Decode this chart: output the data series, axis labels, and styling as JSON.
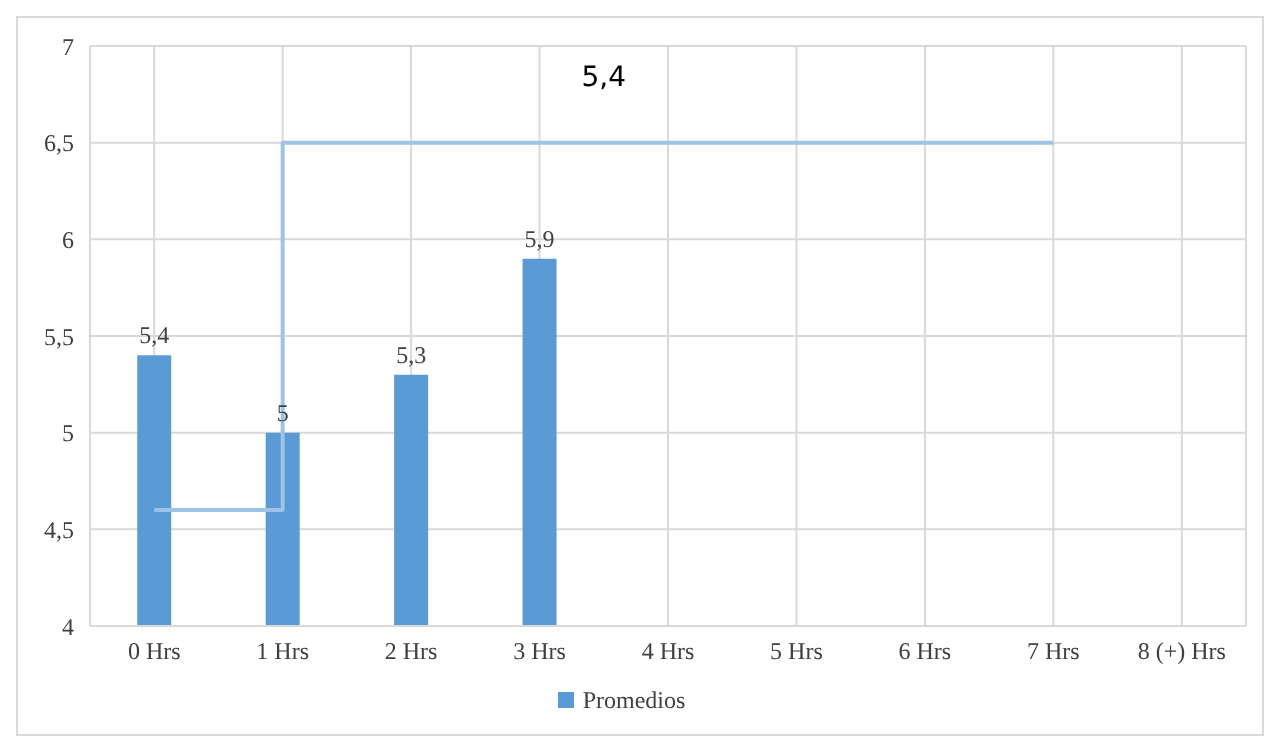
{
  "chart_data": {
    "type": "bar",
    "categories": [
      "0 Hrs",
      "1 Hrs",
      "2 Hrs",
      "3 Hrs",
      "4 Hrs",
      "5 Hrs",
      "6 Hrs",
      "7 Hrs",
      "8 (+) Hrs"
    ],
    "series": [
      {
        "name": "Promedios",
        "color": "#5b9bd5",
        "values": [
          5.4,
          5,
          5.3,
          5.9,
          null,
          null,
          null,
          null,
          null
        ],
        "value_labels": [
          "5,4",
          "5",
          "5,3",
          "5,9",
          null,
          null,
          null,
          null,
          null
        ]
      },
      {
        "type": "step",
        "color": "#9dc3e6",
        "values": [
          4.6,
          6.5,
          6.5,
          6.5,
          6.5,
          6.5,
          6.5,
          6.5,
          null
        ]
      }
    ],
    "ylim": [
      4,
      7
    ],
    "yticks": [
      4,
      {
        "value": 4.5,
        "label": "4,5"
      },
      5,
      {
        "value": 5.5,
        "label": "5,5"
      },
      6,
      {
        "value": 6.5,
        "label": "6,5"
      },
      7
    ],
    "grid": true,
    "legend": "bottom",
    "annotations": [
      "5,4"
    ]
  }
}
